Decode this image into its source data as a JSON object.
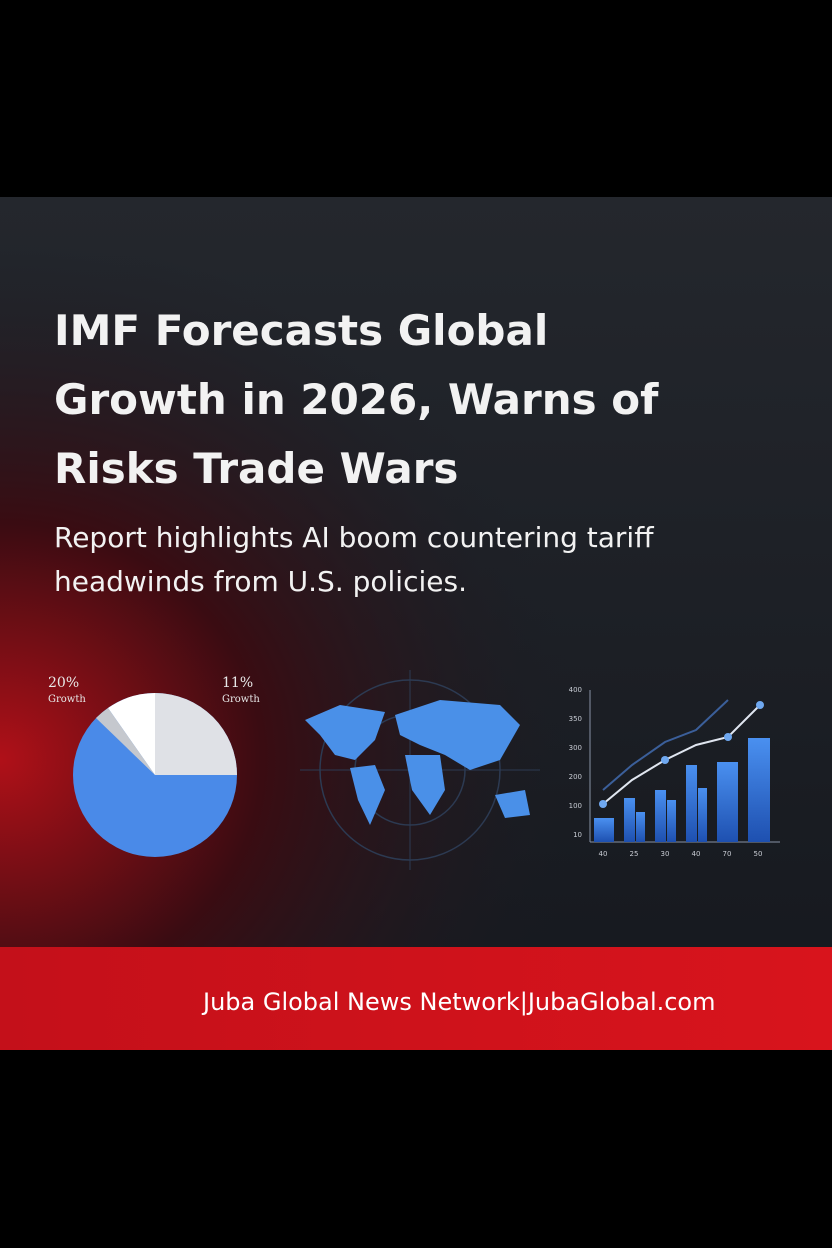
{
  "headline": {
    "title": [
      "IMF Forecasts Global",
      "Growth in 2026, Warns of",
      "Risks Trade Wars"
    ],
    "subtitle": [
      "Report highlights AI boom countering tariff",
      "headwinds from U.S. policies."
    ]
  },
  "graphics": {
    "pie_labels": [
      {
        "value": "20%",
        "label": "Growth"
      },
      {
        "value": "11%",
        "label": "Growth"
      }
    ],
    "bar_chart_y_labels": [
      "400",
      "350",
      "300",
      "200",
      "100",
      "10"
    ],
    "bar_chart_x_labels": [
      "40",
      "25",
      "30",
      "40",
      "70",
      "50"
    ]
  },
  "footer": {
    "text": "Juba Global News Network|JubaGlobal.com"
  }
}
